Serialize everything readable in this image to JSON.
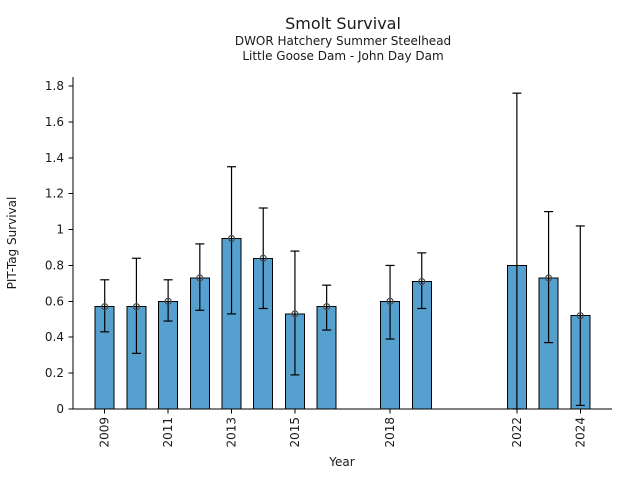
{
  "chart_data": {
    "type": "bar",
    "title": "Smolt Survival",
    "subtitle1": "DWOR Hatchery Summer Steelhead",
    "subtitle2": "Little Goose Dam - John Day Dam",
    "xlabel": "Year",
    "ylabel": "PIT-Tag Survival",
    "xlim": [
      2008,
      2025
    ],
    "ylim": [
      0,
      1.85
    ],
    "grid": false,
    "legend": "none",
    "bar_width_years": 0.6,
    "yticks": [
      {
        "v": 0,
        "label": "0"
      },
      {
        "v": 0.2,
        "label": "0.2"
      },
      {
        "v": 0.4,
        "label": "0.4"
      },
      {
        "v": 0.6,
        "label": "0.6"
      },
      {
        "v": 0.8,
        "label": "0.8"
      },
      {
        "v": 1,
        "label": "1"
      },
      {
        "v": 1.2,
        "label": "1.2"
      },
      {
        "v": 1.4,
        "label": "1.4"
      },
      {
        "v": 1.6,
        "label": "1.6"
      },
      {
        "v": 1.8,
        "label": "1.8"
      }
    ],
    "xticks": [
      {
        "year": 2009,
        "label": "2009"
      },
      {
        "year": 2011,
        "label": "2011"
      },
      {
        "year": 2013,
        "label": "2013"
      },
      {
        "year": 2015,
        "label": "2015"
      },
      {
        "year": 2018,
        "label": "2018"
      },
      {
        "year": 2022,
        "label": "2022"
      },
      {
        "year": 2024,
        "label": "2024"
      }
    ],
    "points": [
      {
        "year": 2009,
        "value": 0.57,
        "lo": 0.43,
        "hi": 0.72,
        "marker": true
      },
      {
        "year": 2010,
        "value": 0.57,
        "lo": 0.31,
        "hi": 0.84,
        "marker": true
      },
      {
        "year": 2011,
        "value": 0.6,
        "lo": 0.49,
        "hi": 0.72,
        "marker": true
      },
      {
        "year": 2012,
        "value": 0.73,
        "lo": 0.55,
        "hi": 0.92,
        "marker": true
      },
      {
        "year": 2013,
        "value": 0.95,
        "lo": 0.53,
        "hi": 1.35,
        "marker": true
      },
      {
        "year": 2014,
        "value": 0.84,
        "lo": 0.56,
        "hi": 1.12,
        "marker": true
      },
      {
        "year": 2015,
        "value": 0.53,
        "lo": 0.19,
        "hi": 0.88,
        "marker": true
      },
      {
        "year": 2016,
        "value": 0.57,
        "lo": 0.44,
        "hi": 0.69,
        "marker": true
      },
      {
        "year": 2018,
        "value": 0.6,
        "lo": 0.39,
        "hi": 0.8,
        "marker": true
      },
      {
        "year": 2019,
        "value": 0.71,
        "lo": 0.56,
        "hi": 0.87,
        "marker": true
      },
      {
        "year": 2022,
        "value": 0.8,
        "lo": 0.0,
        "hi": 1.76,
        "marker": false
      },
      {
        "year": 2023,
        "value": 0.73,
        "lo": 0.37,
        "hi": 1.1,
        "marker": true
      },
      {
        "year": 2024,
        "value": 0.52,
        "lo": 0.02,
        "hi": 1.02,
        "marker": true
      }
    ],
    "colors": {
      "bar_fill": "#55a0ce",
      "bar_edge": "#000000",
      "errorbar": "#000000",
      "marker_edge": "#4a4a4a",
      "axis": "#000000",
      "text": "#1a1a1a",
      "background": "#ffffff"
    }
  }
}
